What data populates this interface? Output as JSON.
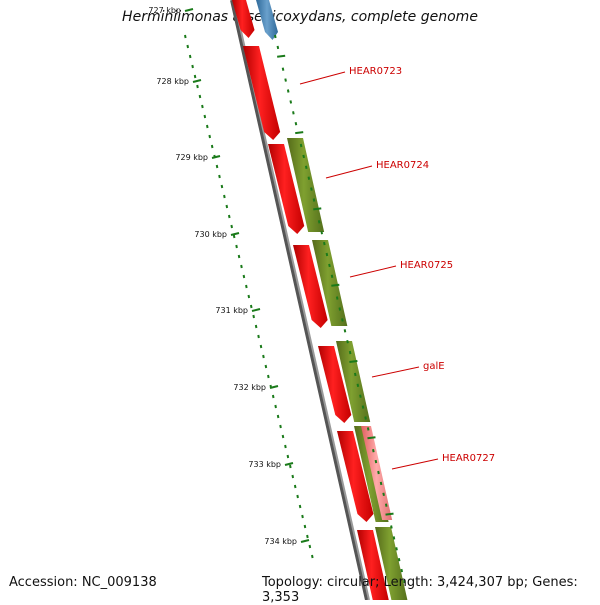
{
  "header": {
    "title": "Herminiimonas arsenicoxydans, complete genome"
  },
  "footer": {
    "accession": "Accession: NC_009138",
    "topology": "Topology: circular; Length: 3,424,307 bp; Genes: 3,353"
  },
  "colors": {
    "forward_gene": "#ee1111",
    "reverse_gene": "#6b8e23",
    "blue_gene": "#4a86b8",
    "pink_gene": "#f08080",
    "backbone": "#808080",
    "ticks": "#1a7a1a",
    "label": "#cc0000"
  },
  "scale": {
    "unit": "kbp",
    "labels": [
      "727 kbp",
      "728 kbp",
      "729 kbp",
      "730 kbp",
      "731 kbp",
      "732 kbp",
      "733 kbp",
      "734 kbp"
    ]
  },
  "gene_labels": [
    "HEAR0723",
    "HEAR0724",
    "HEAR0725",
    "galE",
    "HEAR0727"
  ]
}
